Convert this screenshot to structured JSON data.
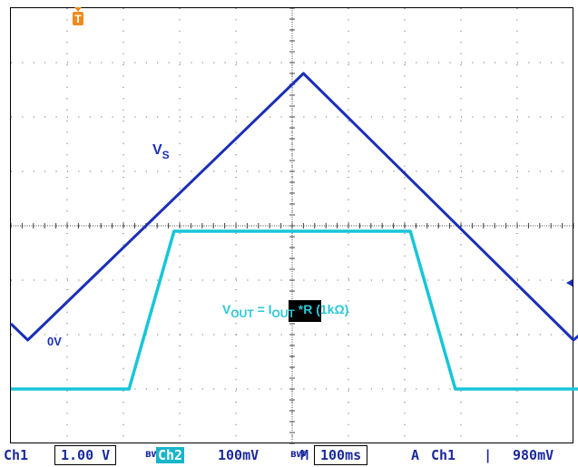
{
  "chart_data": {
    "type": "line",
    "xlim": [
      0,
      10
    ],
    "ylim": [
      0,
      8
    ],
    "grid": true,
    "series": [
      {
        "name": "VS",
        "color": "#1a2fb8",
        "x": [
          0,
          0.3,
          5.2,
          10.0,
          10.35
        ],
        "y": [
          2.2,
          1.9,
          6.8,
          1.9,
          2.2
        ]
      },
      {
        "name": "VOUT",
        "color": "#17c6d8",
        "x": [
          0,
          2.1,
          2.9,
          7.1,
          7.9,
          10.35
        ],
        "y": [
          1.0,
          1.0,
          3.9,
          3.9,
          1.0,
          1.0
        ]
      }
    ],
    "annotations": {
      "vs_label": "V",
      "vs_sub": "S",
      "zero_label": "0V",
      "vout_pre": "V",
      "vout_sub": "OUT",
      "vout_mid": " = I",
      "iout_sub": "OUT",
      "vout_post": " *R (1kΩ)"
    },
    "trigger_marker": "T"
  },
  "status_bar": {
    "ch1": "Ch1",
    "ch1_scale": "1.00 V",
    "bw1": "BW",
    "ch2": "Ch2",
    "ch2_scale": "100mV",
    "bw2": "BW",
    "m_label": "M",
    "timebase": "100ms",
    "a_label": "A",
    "trig_ch": "Ch1",
    "trig_level": "980mV"
  }
}
